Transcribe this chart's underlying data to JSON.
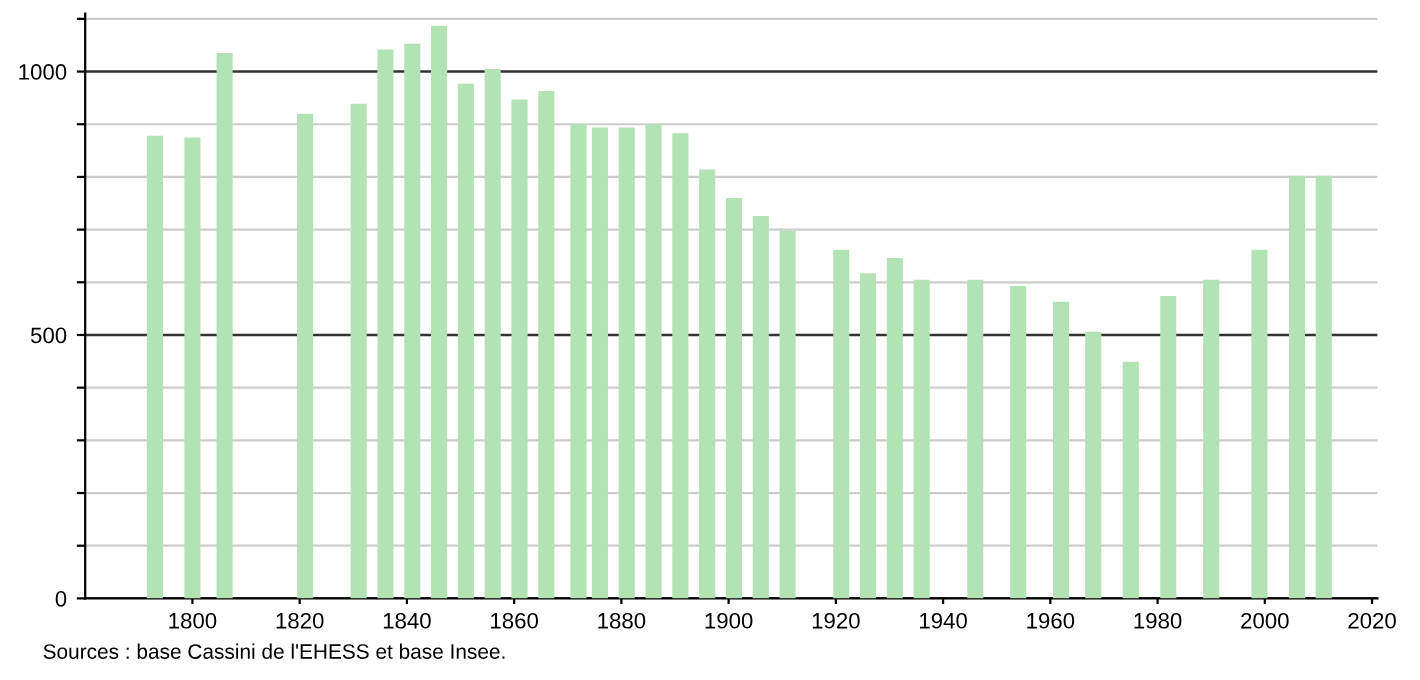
{
  "chart_data": {
    "type": "bar",
    "x": [
      1793,
      1800,
      1806,
      1821,
      1831,
      1836,
      1841,
      1846,
      1851,
      1856,
      1861,
      1866,
      1872,
      1876,
      1881,
      1886,
      1891,
      1896,
      1901,
      1906,
      1911,
      1921,
      1926,
      1931,
      1936,
      1946,
      1954,
      1962,
      1968,
      1975,
      1982,
      1990,
      1999,
      2006,
      2011
    ],
    "values": [
      878,
      875,
      1035,
      920,
      939,
      1042,
      1053,
      1087,
      977,
      1005,
      947,
      963,
      900,
      894,
      894,
      900,
      883,
      814,
      760,
      726,
      698,
      662,
      617,
      646,
      605,
      605,
      593,
      563,
      506,
      449,
      574,
      605,
      662,
      802,
      802
    ],
    "color": "#b3e3b5",
    "xlim": [
      1780,
      2021
    ],
    "xticks": [
      1800,
      1820,
      1840,
      1860,
      1880,
      1900,
      1920,
      1940,
      1960,
      1980,
      2000,
      2020
    ],
    "ylim": [
      0,
      1110
    ],
    "yticks": [
      0,
      {
        "value": 100,
        "label": null
      },
      {
        "value": 200,
        "label": null
      },
      {
        "value": 300,
        "label": null
      },
      {
        "value": 400,
        "label": null
      },
      500,
      {
        "value": 600,
        "label": null
      },
      {
        "value": 700,
        "label": null
      },
      {
        "value": 800,
        "label": null
      },
      {
        "value": 900,
        "label": null
      },
      1000,
      {
        "value": 1100,
        "label": null
      }
    ],
    "grid": "y",
    "annotations": [
      "Sources : base Cassini de l'EHESS et base Insee."
    ]
  }
}
